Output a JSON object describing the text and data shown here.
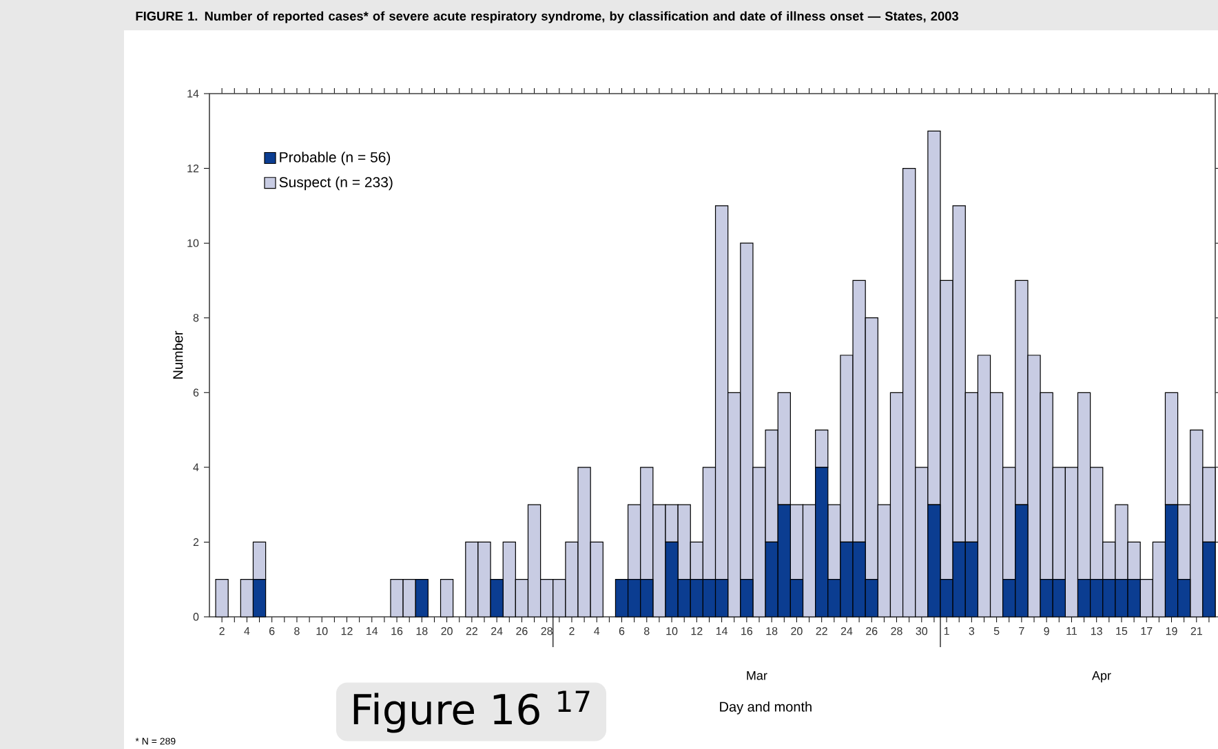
{
  "chart_data": {
    "type": "bar",
    "stacked": true,
    "title": "FIGURE 1. Number of reported cases* of severe acute respiratory syndrome, by classification and date of illness onset — States, 2003",
    "xlabel": "Day and month",
    "ylabel": "Number",
    "categories": [
      "2",
      null,
      "4",
      null,
      "6",
      null,
      "8",
      null,
      "10",
      null,
      "12",
      null,
      "14",
      null,
      "16",
      null,
      "18",
      null,
      "20",
      null,
      "22",
      null,
      "24",
      null,
      "26",
      null,
      "28",
      null,
      "2",
      null,
      "4",
      null,
      "6",
      null,
      "8",
      null,
      "10",
      null,
      "12",
      null,
      "14",
      null,
      "16",
      null,
      "18",
      null,
      "20",
      null,
      "22",
      null,
      "24",
      null,
      "26",
      null,
      "28",
      null,
      "30",
      null,
      "1",
      null,
      "3",
      null,
      "5",
      null,
      "7",
      null,
      "9",
      null,
      "11",
      null,
      "13",
      null,
      "15",
      null,
      "17",
      null,
      "19",
      null,
      "21",
      null
    ],
    "series": [
      {
        "name": "Probable (n = 56)",
        "color": "#0b3d91",
        "values": [
          0,
          0,
          0,
          1,
          0,
          0,
          0,
          0,
          0,
          0,
          0,
          0,
          0,
          0,
          0,
          0,
          1,
          0,
          0,
          0,
          0,
          0,
          1,
          0,
          0,
          0,
          0,
          0,
          0,
          0,
          0,
          0,
          1,
          1,
          1,
          0,
          2,
          1,
          1,
          1,
          1,
          0,
          1,
          0,
          2,
          3,
          1,
          0,
          4,
          1,
          2,
          2,
          1,
          0,
          0,
          0,
          0,
          3,
          1,
          2,
          2,
          0,
          0,
          1,
          3,
          0,
          1,
          1,
          0,
          1,
          1,
          1,
          1,
          1,
          0,
          0,
          3,
          1,
          0,
          2
        ]
      },
      {
        "name": "Suspect (n = 233)",
        "color": "#c8cce3",
        "values": [
          1,
          0,
          1,
          1,
          0,
          0,
          0,
          0,
          0,
          0,
          0,
          0,
          0,
          0,
          1,
          1,
          0,
          0,
          1,
          0,
          2,
          2,
          0,
          2,
          1,
          3,
          1,
          1,
          2,
          4,
          2,
          0,
          0,
          2,
          3,
          3,
          1,
          2,
          1,
          3,
          10,
          6,
          9,
          4,
          3,
          3,
          2,
          3,
          1,
          2,
          5,
          7,
          7,
          3,
          6,
          12,
          4,
          10,
          8,
          9,
          4,
          7,
          6,
          3,
          6,
          7,
          5,
          3,
          4,
          5,
          3,
          1,
          2,
          1,
          1,
          2,
          3,
          2,
          5,
          2
        ]
      }
    ],
    "ylim": [
      0,
      14
    ],
    "yticks": [
      0,
      2,
      4,
      6,
      8,
      10,
      12,
      14
    ],
    "legend": "top left",
    "grid": false,
    "annotations": [
      "Mar",
      "Apr",
      "* N = 289",
      "Figure 16 $^{17}$"
    ]
  }
}
